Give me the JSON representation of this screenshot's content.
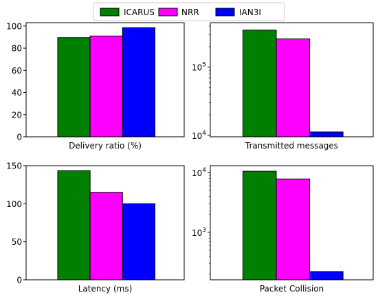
{
  "legend": [
    {
      "name": "ICARUS",
      "color": "#008000"
    },
    {
      "name": "NRR",
      "color": "#ff00ff"
    },
    {
      "name": "IAN3I",
      "color": "#0000ff"
    }
  ],
  "chart_data": [
    {
      "type": "bar",
      "scale": "linear",
      "xlabel": "Delivery ratio (%)",
      "ylim": [
        0,
        103
      ],
      "yticks": [
        0,
        20,
        40,
        60,
        80,
        100
      ],
      "series": [
        {
          "name": "ICARUS",
          "value": 89.5
        },
        {
          "name": "NRR",
          "value": 91
        },
        {
          "name": "IAN3I",
          "value": 98.5
        }
      ]
    },
    {
      "type": "bar",
      "scale": "log",
      "xlabel": "Transmitted messages",
      "ylim": [
        9500,
        450000
      ],
      "yticks": [
        10000,
        100000
      ],
      "series": [
        {
          "name": "ICARUS",
          "value": 350000
        },
        {
          "name": "NRR",
          "value": 260000
        },
        {
          "name": "IAN3I",
          "value": 11200
        }
      ]
    },
    {
      "type": "bar",
      "scale": "linear",
      "xlabel": "Latency (ms)",
      "ylim": [
        0,
        150
      ],
      "yticks": [
        0,
        50,
        100,
        150
      ],
      "series": [
        {
          "name": "ICARUS",
          "value": 143.5
        },
        {
          "name": "NRR",
          "value": 115
        },
        {
          "name": "IAN3I",
          "value": 100
        }
      ]
    },
    {
      "type": "bar",
      "scale": "log",
      "xlabel": "Packet Collision",
      "ylim": [
        160,
        13000
      ],
      "yticks": [
        1000,
        10000
      ],
      "series": [
        {
          "name": "ICARUS",
          "value": 10500
        },
        {
          "name": "NRR",
          "value": 7800
        },
        {
          "name": "IAN3I",
          "value": 220
        }
      ]
    }
  ]
}
